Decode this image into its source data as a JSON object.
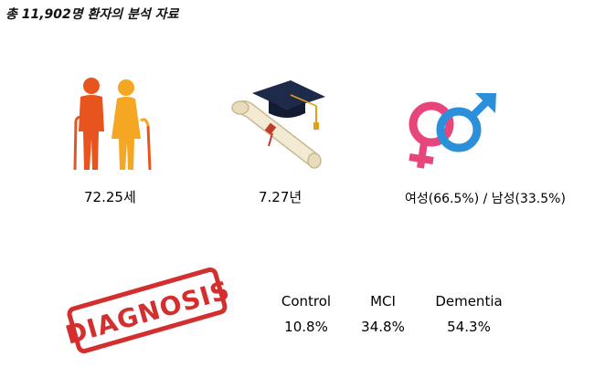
{
  "title": "총 11,902명 환자의 분석 자료",
  "stats": {
    "age": {
      "value": "72.25세",
      "icon": "elderly-couple-icon"
    },
    "education": {
      "value": "7.27년",
      "icon": "graduation-diploma-icon"
    },
    "gender": {
      "value": "여성(66.5%) / 남성(33.5%)",
      "icon": "gender-symbols-icon"
    }
  },
  "diagnosis": {
    "stamp_text": "DIAGNOSIS",
    "stamp_color": "#d32f2f",
    "columns": [
      {
        "label": "Control",
        "value": "10.8%"
      },
      {
        "label": "MCI",
        "value": "34.8%"
      },
      {
        "label": "Dementia",
        "value": "54.3%"
      }
    ]
  },
  "colors": {
    "man": "#e8541e",
    "woman": "#f5a623",
    "female_symbol": "#e8457a",
    "male_symbol": "#2b8fd9",
    "cap": "#1e2a4a"
  }
}
